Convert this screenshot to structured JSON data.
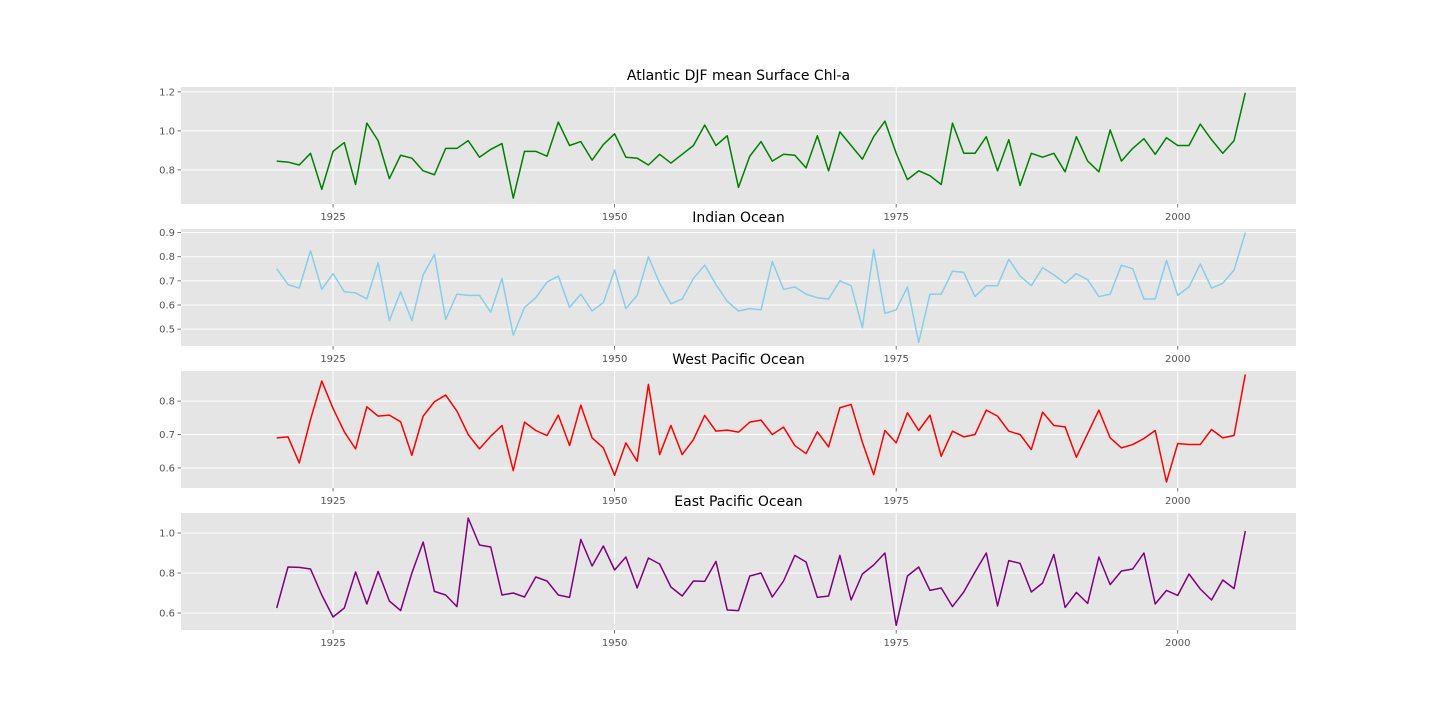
{
  "chart_data": [
    {
      "type": "line",
      "title": "Atlantic DJF mean Surface Chl-a",
      "color": "#008000",
      "xlim": [
        1911.5,
        2010.5
      ],
      "ylim": [
        0.625,
        1.225
      ],
      "yticks": [
        0.8,
        1.0,
        1.2
      ],
      "ytick_labels": [
        "0.8",
        "1.0",
        "1.2"
      ],
      "xticks": [
        1925,
        1950,
        1975,
        2000
      ],
      "xtick_labels": [
        "1925",
        "1950",
        "1975",
        "2000"
      ],
      "grid": true,
      "x": [
        1920,
        1921,
        1922,
        1923,
        1924,
        1925,
        1926,
        1927,
        1928,
        1929,
        1930,
        1931,
        1932,
        1933,
        1934,
        1935,
        1936,
        1937,
        1938,
        1939,
        1940,
        1941,
        1942,
        1943,
        1944,
        1945,
        1946,
        1947,
        1948,
        1949,
        1950,
        1951,
        1952,
        1953,
        1954,
        1955,
        1956,
        1957,
        1958,
        1959,
        1960,
        1961,
        1962,
        1963,
        1964,
        1965,
        1966,
        1967,
        1968,
        1969,
        1970,
        1971,
        1972,
        1973,
        1974,
        1975,
        1976,
        1977,
        1978,
        1979,
        1980,
        1981,
        1982,
        1983,
        1984,
        1985,
        1986,
        1987,
        1988,
        1989,
        1990,
        1991,
        1992,
        1993,
        1994,
        1995,
        1996,
        1997,
        1998,
        1999,
        2000,
        2001,
        2002,
        2003,
        2004,
        2005,
        2006
      ],
      "y": [
        0.845,
        0.84,
        0.825,
        0.885,
        0.7,
        0.895,
        0.94,
        0.725,
        1.04,
        0.95,
        0.755,
        0.875,
        0.86,
        0.795,
        0.775,
        0.91,
        0.91,
        0.95,
        0.865,
        0.905,
        0.935,
        0.655,
        0.895,
        0.895,
        0.87,
        1.045,
        0.925,
        0.945,
        0.85,
        0.93,
        0.985,
        0.865,
        0.86,
        0.825,
        0.88,
        0.835,
        0.88,
        0.925,
        1.03,
        0.925,
        0.975,
        0.71,
        0.87,
        0.945,
        0.845,
        0.88,
        0.875,
        0.81,
        0.975,
        0.795,
        0.995,
        0.925,
        0.855,
        0.97,
        1.05,
        0.885,
        0.75,
        0.795,
        0.77,
        0.725,
        1.04,
        0.885,
        0.885,
        0.97,
        0.795,
        0.955,
        0.72,
        0.885,
        0.865,
        0.885,
        0.79,
        0.97,
        0.845,
        0.79,
        1.005,
        0.845,
        0.91,
        0.96,
        0.88,
        0.965,
        0.925,
        0.925,
        1.035,
        0.955,
        0.885,
        0.95,
        1.195
      ]
    },
    {
      "type": "line",
      "title": "Indian Ocean",
      "color": "#87ceeb",
      "xlim": [
        1911.5,
        2010.5
      ],
      "ylim": [
        0.43,
        0.915
      ],
      "yticks": [
        0.5,
        0.6,
        0.7,
        0.8,
        0.9
      ],
      "ytick_labels": [
        "0.5",
        "0.6",
        "0.7",
        "0.8",
        "0.9"
      ],
      "xticks": [
        1925,
        1950,
        1975,
        2000
      ],
      "xtick_labels": [
        "1925",
        "1950",
        "1975",
        "2000"
      ],
      "grid": true,
      "x": [
        1920,
        1921,
        1922,
        1923,
        1924,
        1925,
        1926,
        1927,
        1928,
        1929,
        1930,
        1931,
        1932,
        1933,
        1934,
        1935,
        1936,
        1937,
        1938,
        1939,
        1940,
        1941,
        1942,
        1943,
        1944,
        1945,
        1946,
        1947,
        1948,
        1949,
        1950,
        1951,
        1952,
        1953,
        1954,
        1955,
        1956,
        1957,
        1958,
        1959,
        1960,
        1961,
        1962,
        1963,
        1964,
        1965,
        1966,
        1967,
        1968,
        1969,
        1970,
        1971,
        1972,
        1973,
        1974,
        1975,
        1976,
        1977,
        1978,
        1979,
        1980,
        1981,
        1982,
        1983,
        1984,
        1985,
        1986,
        1987,
        1988,
        1989,
        1990,
        1991,
        1992,
        1993,
        1994,
        1995,
        1996,
        1997,
        1998,
        1999,
        2000,
        2001,
        2002,
        2003,
        2004,
        2005,
        2006
      ],
      "y": [
        0.75,
        0.685,
        0.67,
        0.825,
        0.665,
        0.73,
        0.655,
        0.65,
        0.625,
        0.775,
        0.535,
        0.655,
        0.535,
        0.725,
        0.81,
        0.54,
        0.645,
        0.64,
        0.64,
        0.57,
        0.71,
        0.475,
        0.59,
        0.63,
        0.695,
        0.72,
        0.59,
        0.645,
        0.575,
        0.61,
        0.745,
        0.585,
        0.64,
        0.8,
        0.69,
        0.605,
        0.625,
        0.71,
        0.765,
        0.685,
        0.615,
        0.575,
        0.585,
        0.58,
        0.78,
        0.665,
        0.675,
        0.645,
        0.63,
        0.625,
        0.7,
        0.68,
        0.505,
        0.83,
        0.565,
        0.58,
        0.675,
        0.445,
        0.645,
        0.645,
        0.74,
        0.735,
        0.635,
        0.68,
        0.68,
        0.79,
        0.72,
        0.68,
        0.755,
        0.725,
        0.69,
        0.73,
        0.705,
        0.635,
        0.645,
        0.765,
        0.75,
        0.625,
        0.625,
        0.785,
        0.64,
        0.675,
        0.77,
        0.67,
        0.69,
        0.745,
        0.9
      ]
    },
    {
      "type": "line",
      "title": "West Pacific Ocean",
      "color": "#ff0000",
      "xlim": [
        1911.5,
        2010.5
      ],
      "ylim": [
        0.54,
        0.89
      ],
      "yticks": [
        0.6,
        0.7,
        0.8
      ],
      "ytick_labels": [
        "0.6",
        "0.7",
        "0.8"
      ],
      "xticks": [
        1925,
        1950,
        1975,
        2000
      ],
      "xtick_labels": [
        "1925",
        "1950",
        "1975",
        "2000"
      ],
      "grid": true,
      "x": [
        1920,
        1921,
        1922,
        1923,
        1924,
        1925,
        1926,
        1927,
        1928,
        1929,
        1930,
        1931,
        1932,
        1933,
        1934,
        1935,
        1936,
        1937,
        1938,
        1939,
        1940,
        1941,
        1942,
        1943,
        1944,
        1945,
        1946,
        1947,
        1948,
        1949,
        1950,
        1951,
        1952,
        1953,
        1954,
        1955,
        1956,
        1957,
        1958,
        1959,
        1960,
        1961,
        1962,
        1963,
        1964,
        1965,
        1966,
        1967,
        1968,
        1969,
        1970,
        1971,
        1972,
        1973,
        1974,
        1975,
        1976,
        1977,
        1978,
        1979,
        1980,
        1981,
        1982,
        1983,
        1984,
        1985,
        1986,
        1987,
        1988,
        1989,
        1990,
        1991,
        1992,
        1993,
        1994,
        1995,
        1996,
        1997,
        1998,
        1999,
        2000,
        2001,
        2002,
        2003,
        2004,
        2005,
        2006
      ],
      "y": [
        0.69,
        0.693,
        0.615,
        0.745,
        0.86,
        0.778,
        0.708,
        0.657,
        0.783,
        0.755,
        0.758,
        0.738,
        0.638,
        0.755,
        0.798,
        0.818,
        0.77,
        0.7,
        0.657,
        0.695,
        0.727,
        0.592,
        0.737,
        0.712,
        0.697,
        0.758,
        0.667,
        0.788,
        0.69,
        0.66,
        0.578,
        0.675,
        0.62,
        0.85,
        0.64,
        0.727,
        0.64,
        0.685,
        0.757,
        0.71,
        0.713,
        0.707,
        0.737,
        0.743,
        0.7,
        0.722,
        0.667,
        0.643,
        0.708,
        0.663,
        0.78,
        0.79,
        0.677,
        0.58,
        0.712,
        0.675,
        0.765,
        0.712,
        0.758,
        0.635,
        0.71,
        0.693,
        0.7,
        0.773,
        0.755,
        0.71,
        0.7,
        0.655,
        0.767,
        0.727,
        0.723,
        0.632,
        0.703,
        0.773,
        0.69,
        0.66,
        0.67,
        0.688,
        0.712,
        0.558,
        0.673,
        0.67,
        0.67,
        0.715,
        0.69,
        0.697,
        0.88
      ]
    },
    {
      "type": "line",
      "title": "East Pacific Ocean",
      "color": "#800080",
      "xlim": [
        1911.5,
        2010.5
      ],
      "ylim": [
        0.515,
        1.1
      ],
      "yticks": [
        0.6,
        0.8,
        1.0
      ],
      "ytick_labels": [
        "0.6",
        "0.8",
        "1.0"
      ],
      "xticks": [
        1925,
        1950,
        1975,
        2000
      ],
      "xtick_labels": [
        "1925",
        "1950",
        "1975",
        "2000"
      ],
      "grid": true,
      "x": [
        1920,
        1921,
        1922,
        1923,
        1924,
        1925,
        1926,
        1927,
        1928,
        1929,
        1930,
        1931,
        1932,
        1933,
        1934,
        1935,
        1936,
        1937,
        1938,
        1939,
        1940,
        1941,
        1942,
        1943,
        1944,
        1945,
        1946,
        1947,
        1948,
        1949,
        1950,
        1951,
        1952,
        1953,
        1954,
        1955,
        1956,
        1957,
        1958,
        1959,
        1960,
        1961,
        1962,
        1963,
        1964,
        1965,
        1966,
        1967,
        1968,
        1969,
        1970,
        1971,
        1972,
        1973,
        1974,
        1975,
        1976,
        1977,
        1978,
        1979,
        1980,
        1981,
        1982,
        1983,
        1984,
        1985,
        1986,
        1987,
        1988,
        1989,
        1990,
        1991,
        1992,
        1993,
        1994,
        1995,
        1996,
        1997,
        1998,
        1999,
        2000,
        2001,
        2002,
        2003,
        2004,
        2005,
        2006
      ],
      "y": [
        0.625,
        0.83,
        0.828,
        0.82,
        0.69,
        0.58,
        0.625,
        0.805,
        0.645,
        0.808,
        0.66,
        0.612,
        0.8,
        0.955,
        0.708,
        0.69,
        0.632,
        1.075,
        0.94,
        0.93,
        0.69,
        0.7,
        0.68,
        0.78,
        0.76,
        0.69,
        0.678,
        0.968,
        0.835,
        0.935,
        0.815,
        0.88,
        0.725,
        0.875,
        0.845,
        0.73,
        0.685,
        0.76,
        0.758,
        0.858,
        0.615,
        0.612,
        0.785,
        0.8,
        0.68,
        0.76,
        0.888,
        0.855,
        0.678,
        0.685,
        0.888,
        0.665,
        0.795,
        0.84,
        0.9,
        0.538,
        0.785,
        0.83,
        0.713,
        0.725,
        0.632,
        0.705,
        0.805,
        0.9,
        0.635,
        0.862,
        0.848,
        0.705,
        0.75,
        0.893,
        0.628,
        0.703,
        0.648,
        0.88,
        0.742,
        0.81,
        0.82,
        0.9,
        0.645,
        0.713,
        0.688,
        0.795,
        0.72,
        0.665,
        0.765,
        0.722,
        1.01
      ]
    }
  ]
}
